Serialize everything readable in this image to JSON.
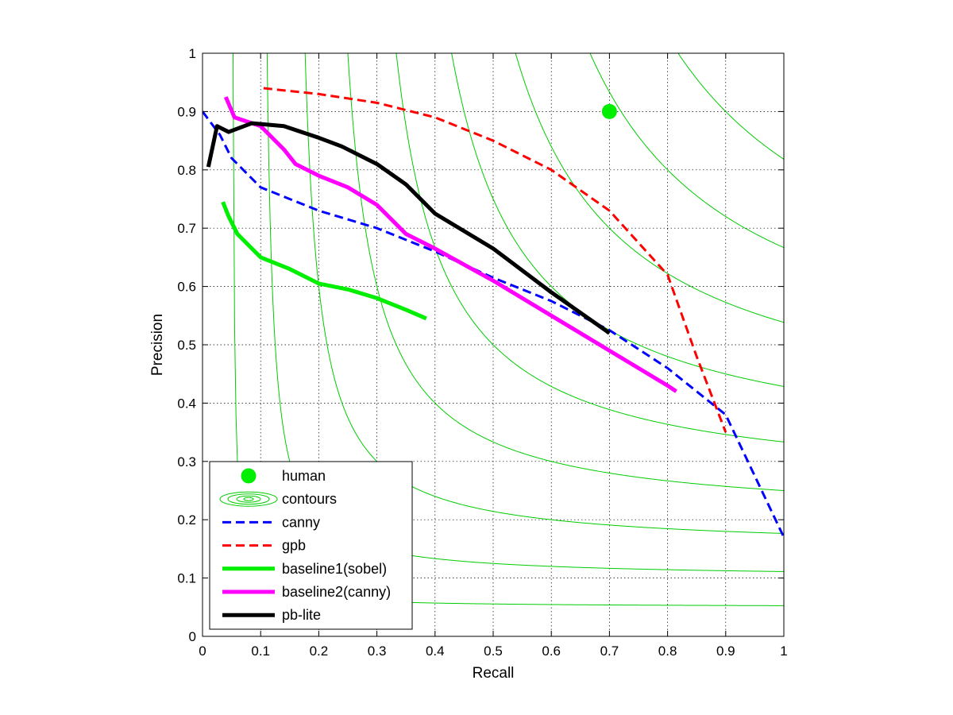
{
  "chart_data": {
    "type": "line",
    "title": "",
    "xlabel": "Recall",
    "ylabel": "Precision",
    "xlim": [
      0,
      1
    ],
    "ylim": [
      0,
      1
    ],
    "xticks": [
      "0",
      "0.1",
      "0.2",
      "0.3",
      "0.4",
      "0.5",
      "0.6",
      "0.7",
      "0.8",
      "0.9",
      "1"
    ],
    "yticks": [
      "0",
      "0.1",
      "0.2",
      "0.3",
      "0.4",
      "0.5",
      "0.6",
      "0.7",
      "0.8",
      "0.9",
      "1"
    ],
    "grid": true,
    "legend_position": "bottom-left",
    "contour_levels": [
      0.1,
      0.2,
      0.3,
      0.4,
      0.5,
      0.6,
      0.7,
      0.8,
      0.9
    ],
    "human_point": {
      "x": 0.7,
      "y": 0.9
    },
    "series": [
      {
        "name": "human",
        "style": "marker",
        "color": "#00ee00",
        "x": [
          0.7
        ],
        "y": [
          0.9
        ]
      },
      {
        "name": "contours",
        "style": "contour",
        "color": "#00cc00"
      },
      {
        "name": "canny",
        "style": "dashed",
        "color": "#0000ff",
        "x": [
          0.0,
          0.03,
          0.05,
          0.1,
          0.2,
          0.3,
          0.4,
          0.5,
          0.6,
          0.7,
          0.8,
          0.9,
          1.0
        ],
        "y": [
          0.9,
          0.86,
          0.82,
          0.77,
          0.73,
          0.7,
          0.66,
          0.615,
          0.575,
          0.525,
          0.46,
          0.38,
          0.17
        ]
      },
      {
        "name": "gpb",
        "style": "dashed",
        "color": "#ff0000",
        "x": [
          0.105,
          0.2,
          0.3,
          0.4,
          0.5,
          0.6,
          0.7,
          0.8,
          0.85,
          0.9
        ],
        "y": [
          0.94,
          0.93,
          0.915,
          0.89,
          0.85,
          0.8,
          0.73,
          0.62,
          0.48,
          0.35
        ]
      },
      {
        "name": "baseline1(sobel)",
        "style": "solid",
        "color": "#00ee00",
        "x": [
          0.035,
          0.045,
          0.06,
          0.1,
          0.15,
          0.2,
          0.25,
          0.3,
          0.35,
          0.385
        ],
        "y": [
          0.745,
          0.72,
          0.69,
          0.65,
          0.63,
          0.605,
          0.595,
          0.58,
          0.56,
          0.545
        ]
      },
      {
        "name": "baseline2(canny)",
        "style": "solid",
        "color": "#ff00ff",
        "x": [
          0.04,
          0.055,
          0.1,
          0.14,
          0.16,
          0.2,
          0.25,
          0.3,
          0.35,
          0.4,
          0.5,
          0.6,
          0.7,
          0.8,
          0.815
        ],
        "y": [
          0.925,
          0.89,
          0.875,
          0.835,
          0.81,
          0.79,
          0.77,
          0.74,
          0.69,
          0.665,
          0.61,
          0.55,
          0.49,
          0.43,
          0.42
        ]
      },
      {
        "name": "pb-lite",
        "style": "solid",
        "color": "#000000",
        "x": [
          0.01,
          0.025,
          0.045,
          0.085,
          0.14,
          0.2,
          0.24,
          0.3,
          0.35,
          0.4,
          0.5,
          0.6,
          0.7
        ],
        "y": [
          0.805,
          0.875,
          0.865,
          0.88,
          0.875,
          0.855,
          0.84,
          0.81,
          0.775,
          0.725,
          0.665,
          0.59,
          0.52
        ]
      }
    ]
  }
}
